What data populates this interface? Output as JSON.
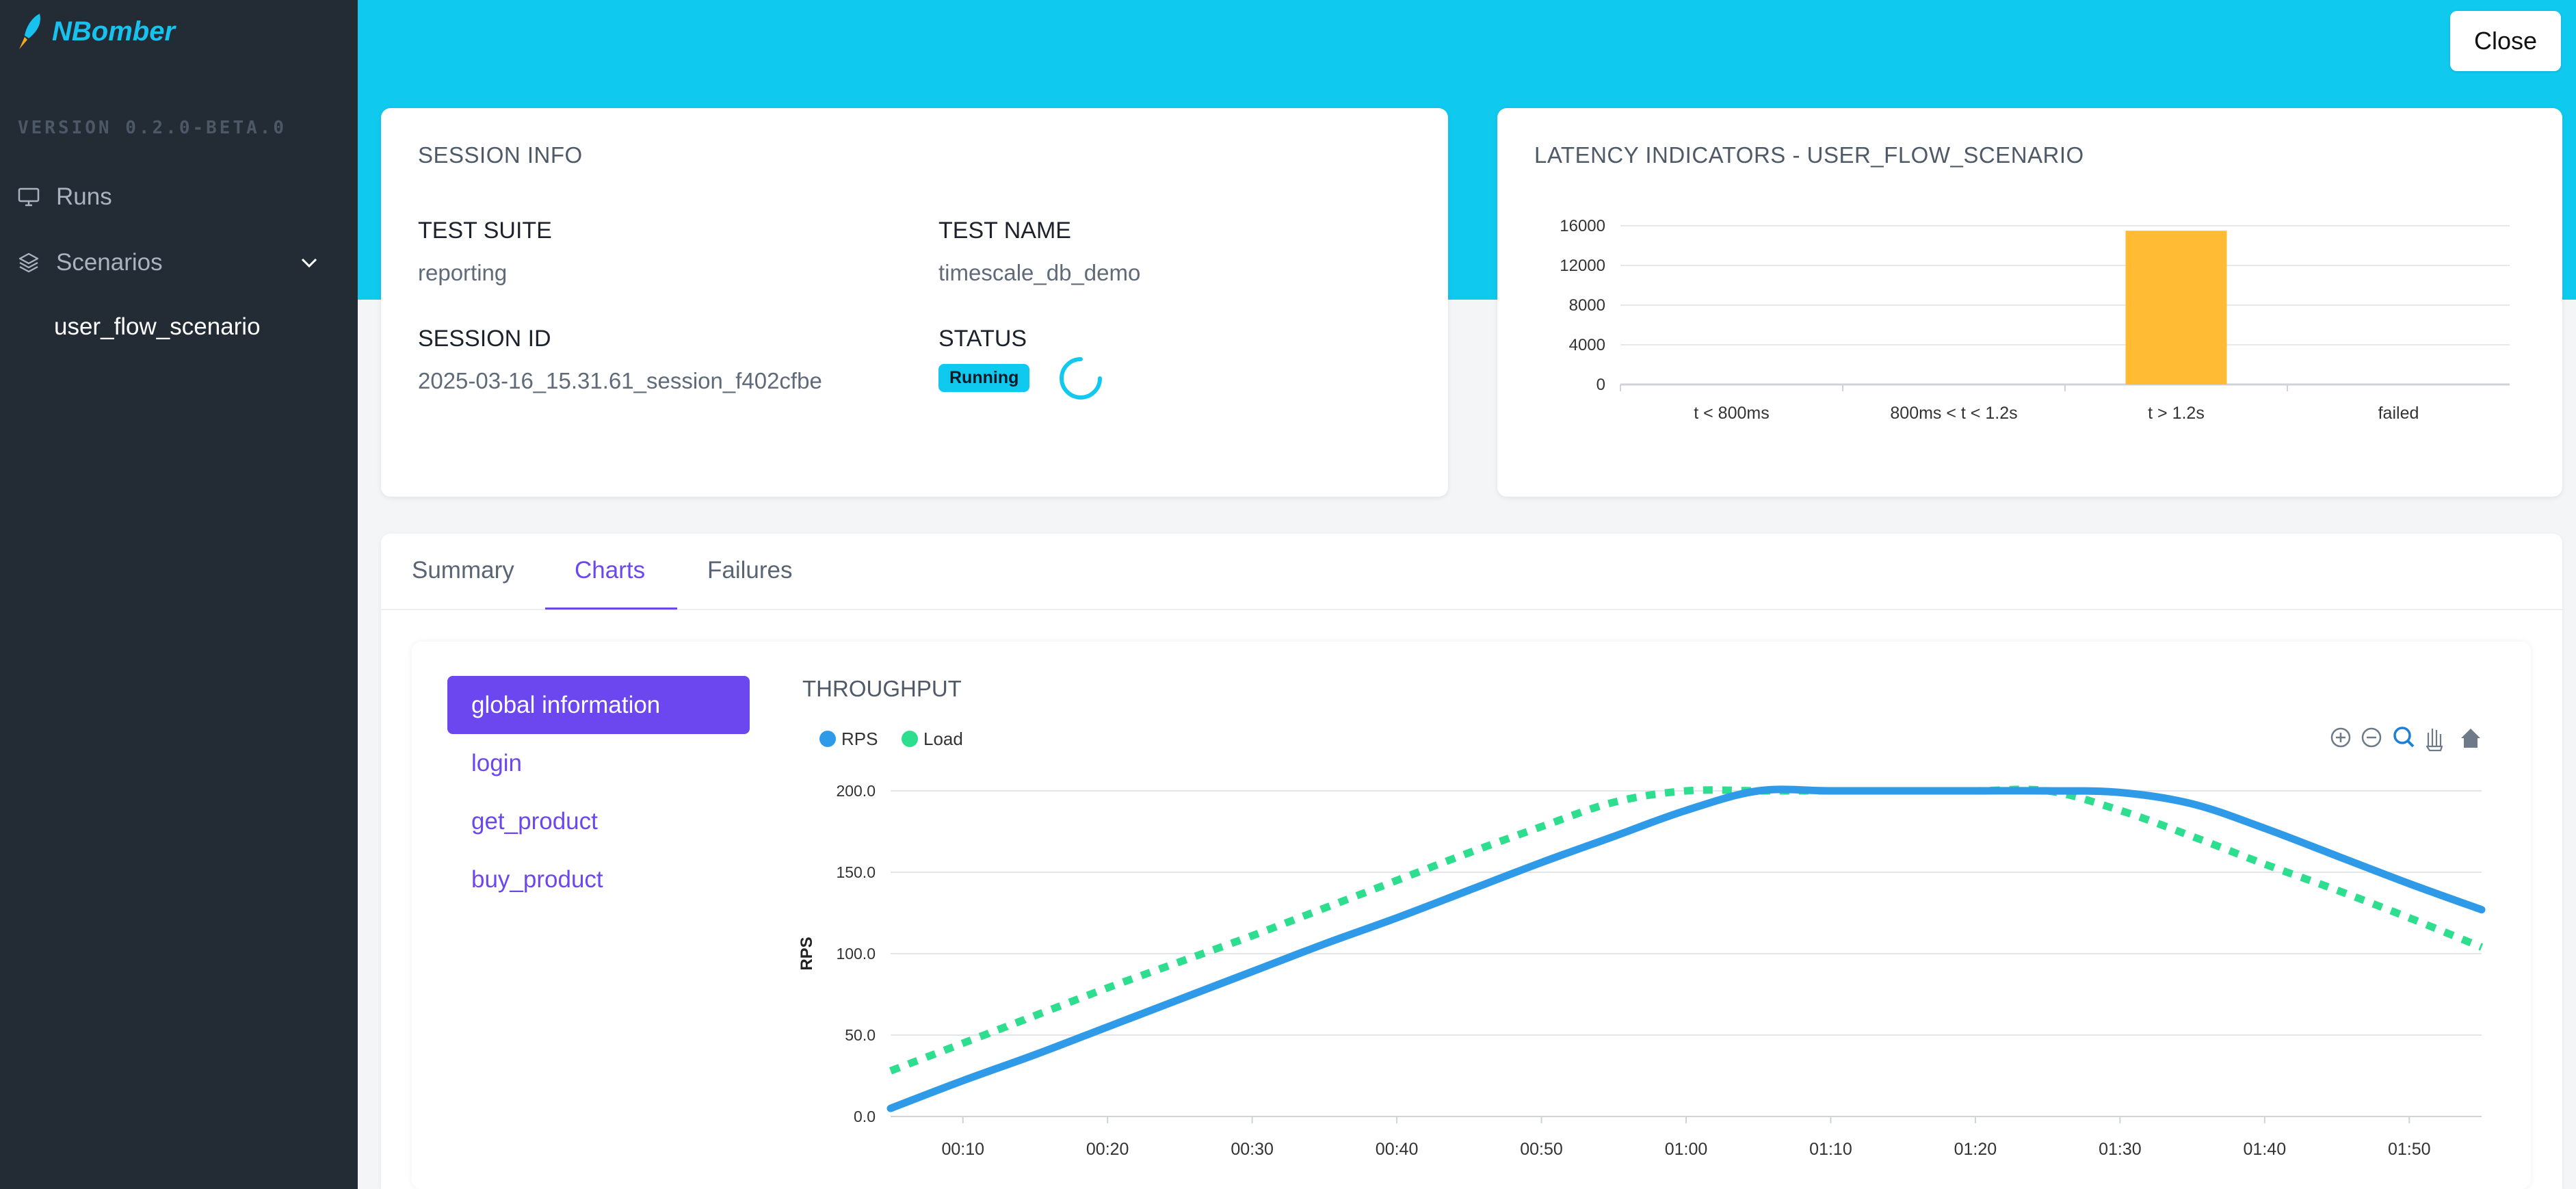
{
  "app": {
    "logo_text": "NBomber",
    "version": "VERSION 0.2.0-BETA.0"
  },
  "sidebar": {
    "items": [
      {
        "label": "Runs",
        "icon": "monitor-icon"
      },
      {
        "label": "Scenarios",
        "icon": "layers-icon"
      }
    ],
    "sub_items": [
      {
        "label": "user_flow_scenario"
      }
    ]
  },
  "header": {
    "close_label": "Close"
  },
  "session": {
    "title": "SESSION INFO",
    "test_suite_label": "TEST SUITE",
    "test_suite": "reporting",
    "test_name_label": "TEST NAME",
    "test_name": "timescale_db_demo",
    "session_id_label": "SESSION ID",
    "session_id": "2025-03-16_15.31.61_session_f402cfbe",
    "status_label": "STATUS",
    "status": "Running"
  },
  "latency": {
    "title": "LATENCY INDICATORS - USER_FLOW_SCENARIO"
  },
  "tabs": [
    {
      "label": "Summary"
    },
    {
      "label": "Charts"
    },
    {
      "label": "Failures"
    }
  ],
  "charts_menu": [
    {
      "label": "global information"
    },
    {
      "label": "login"
    },
    {
      "label": "get_product"
    },
    {
      "label": "buy_product"
    }
  ],
  "throughput": {
    "title": "THROUGHPUT",
    "toolbar_icons": [
      "zoom-in-icon",
      "zoom-out-icon",
      "zoom-select-icon",
      "pan-hand-icon",
      "reset-home-icon"
    ]
  },
  "colors": {
    "accent": "#6c47ef",
    "banner": "#10c9ef",
    "rps": "#2f9be8",
    "load": "#2ede8f",
    "bar": "#ffbb33"
  },
  "chart_data": [
    {
      "type": "bar",
      "categories": [
        "t < 800ms",
        "800ms < t < 1.2s",
        "t > 1.2s",
        "failed"
      ],
      "values": [
        0,
        0,
        15500,
        0
      ],
      "yticks": [
        0,
        4000,
        8000,
        12000,
        16000
      ],
      "ylim": [
        0,
        16000
      ]
    },
    {
      "type": "line",
      "ylabel": "RPS",
      "ylim": [
        0,
        200
      ],
      "yticks": [
        "0.0",
        "50.0",
        "100.0",
        "150.0",
        "200.0"
      ],
      "xticks": [
        "00:10",
        "00:20",
        "00:30",
        "00:40",
        "00:50",
        "01:00",
        "01:10",
        "01:20",
        "01:30",
        "01:40",
        "01:50"
      ],
      "xlim": [
        5,
        115
      ],
      "series": [
        {
          "name": "RPS",
          "color": "#2f9be8",
          "dashed": false,
          "x": [
            5,
            10,
            15,
            20,
            25,
            30,
            35,
            40,
            45,
            50,
            55,
            60,
            65,
            70,
            75,
            80,
            85,
            90,
            95,
            100,
            105,
            110,
            115
          ],
          "y": [
            5,
            22,
            38,
            55,
            72,
            89,
            106,
            122,
            139,
            156,
            172,
            188,
            200,
            200,
            200,
            200,
            200,
            199,
            192,
            177,
            160,
            143,
            127
          ]
        },
        {
          "name": "Load",
          "color": "#2ede8f",
          "dashed": false,
          "x": [
            5,
            10,
            15,
            20,
            25,
            30,
            35,
            40,
            45,
            50,
            55,
            60,
            65,
            70,
            75,
            80,
            85,
            90,
            95,
            100,
            105,
            110,
            115
          ],
          "y": [
            28,
            45,
            62,
            79,
            95,
            111,
            128,
            145,
            162,
            178,
            193,
            200,
            200,
            200,
            200,
            200,
            200,
            188,
            172,
            155,
            139,
            122,
            104
          ]
        }
      ]
    }
  ]
}
